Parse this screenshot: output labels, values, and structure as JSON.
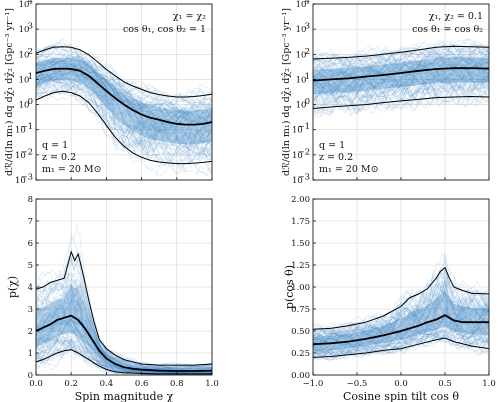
{
  "chart_data": [
    {
      "id": "top-left",
      "type": "line",
      "yscale": "log",
      "xlim": [
        0,
        1
      ],
      "ylim": [
        0.001,
        10000
      ],
      "xticks": [
        0.0,
        0.2,
        0.4,
        0.6,
        0.8,
        1.0
      ],
      "xticklabels": [
        "",
        "",
        "",
        "",
        "",
        ""
      ],
      "yticks": [
        0.001,
        0.01,
        0.1,
        1,
        10,
        100,
        1000,
        10000
      ],
      "yticklabels": [
        "10",
        "10",
        "10",
        "10",
        "10",
        "10",
        "10",
        "10"
      ],
      "ytickexps": [
        "−3",
        "−2",
        "−1",
        "0",
        "1",
        "2",
        "3",
        "4"
      ],
      "xlabel": "",
      "ylabel": "dℛ/d(ln m₁) dq dχ̂₁ dχ̂₂ [Gpc⁻³ yr⁻¹]",
      "grid": true,
      "annotations_topright": [
        "χ₁ = χ₂",
        "cos θ₁, cos θ₂ = 1"
      ],
      "annotations_bottomleft": [
        "q = 1",
        "z = 0.2",
        "m₁ = 20 M⊙"
      ],
      "band_color": "#2f7fbf",
      "series": [
        {
          "role": "median",
          "x": [
            0,
            0.05,
            0.1,
            0.15,
            0.2,
            0.25,
            0.3,
            0.35,
            0.4,
            0.45,
            0.5,
            0.55,
            0.6,
            0.65,
            0.7,
            0.75,
            0.8,
            0.85,
            0.9,
            0.95,
            1.0
          ],
          "values": [
            18,
            22,
            26,
            27,
            26,
            22,
            14,
            7,
            3.5,
            1.8,
            1.0,
            0.6,
            0.4,
            0.3,
            0.25,
            0.2,
            0.17,
            0.16,
            0.16,
            0.17,
            0.2
          ]
        },
        {
          "role": "upper",
          "x": [
            0,
            0.05,
            0.1,
            0.15,
            0.2,
            0.25,
            0.3,
            0.35,
            0.4,
            0.45,
            0.5,
            0.55,
            0.6,
            0.65,
            0.7,
            0.75,
            0.8,
            0.85,
            0.9,
            0.95,
            1.0
          ],
          "values": [
            110,
            150,
            190,
            200,
            190,
            150,
            95,
            50,
            25,
            14,
            8,
            5.5,
            4,
            3,
            2.5,
            2.2,
            2.0,
            2.0,
            2.1,
            2.3,
            2.6
          ]
        },
        {
          "role": "lower",
          "x": [
            0,
            0.05,
            0.1,
            0.15,
            0.2,
            0.25,
            0.3,
            0.35,
            0.4,
            0.45,
            0.5,
            0.55,
            0.6,
            0.65,
            0.7,
            0.75,
            0.8,
            0.85,
            0.9,
            0.95,
            1.0
          ],
          "values": [
            1.5,
            2.2,
            3.0,
            3.4,
            3.0,
            2.2,
            1.2,
            0.45,
            0.15,
            0.05,
            0.022,
            0.012,
            0.008,
            0.006,
            0.0052,
            0.0048,
            0.0045,
            0.0045,
            0.0047,
            0.005,
            0.0055
          ]
        }
      ]
    },
    {
      "id": "top-right",
      "type": "line",
      "yscale": "log",
      "xlim": [
        -1,
        1
      ],
      "ylim": [
        0.001,
        10000
      ],
      "xticks": [
        -1.0,
        -0.5,
        0.0,
        0.5,
        1.0
      ],
      "xticklabels": [
        "",
        "",
        "",
        "",
        ""
      ],
      "yticks": [
        0.001,
        0.01,
        0.1,
        1,
        10,
        100,
        1000,
        10000
      ],
      "yticklabels": [
        "10",
        "10",
        "10",
        "10",
        "10",
        "10",
        "10",
        "10"
      ],
      "ytickexps": [
        "−3",
        "−2",
        "−1",
        "0",
        "1",
        "2",
        "3",
        "4"
      ],
      "xlabel": "",
      "ylabel": "dℛ/d(ln m₁) dq dχ̂₁ dχ̂₂ [Gpc⁻³ yr⁻¹]",
      "grid": true,
      "annotations_topright": [
        "χ₁, χ₂ = 0.1",
        "cos θ₁ = cos θ₂"
      ],
      "annotations_bottomleft": [
        "q = 1",
        "z = 0.2",
        "m₁ = 20 M⊙"
      ],
      "band_color": "#2f7fbf",
      "series": [
        {
          "role": "median",
          "x": [
            -1,
            -0.8,
            -0.6,
            -0.4,
            -0.2,
            0,
            0.2,
            0.4,
            0.6,
            0.8,
            1.0
          ],
          "values": [
            9,
            10,
            11,
            13,
            15,
            18,
            22,
            26,
            28,
            28,
            27
          ]
        },
        {
          "role": "upper",
          "x": [
            -1,
            -0.8,
            -0.6,
            -0.4,
            -0.2,
            0,
            0.2,
            0.4,
            0.6,
            0.8,
            1.0
          ],
          "values": [
            65,
            70,
            75,
            85,
            100,
            120,
            150,
            190,
            210,
            200,
            190
          ]
        },
        {
          "role": "lower",
          "x": [
            -1,
            -0.8,
            -0.6,
            -0.4,
            -0.2,
            0,
            0.2,
            0.4,
            0.6,
            0.8,
            1.0
          ],
          "values": [
            0.7,
            0.8,
            0.9,
            1.0,
            1.2,
            1.4,
            1.6,
            1.9,
            2.0,
            2.1,
            2.0
          ]
        }
      ]
    },
    {
      "id": "bottom-left",
      "type": "line",
      "yscale": "linear",
      "xlim": [
        0,
        1
      ],
      "ylim": [
        0,
        8
      ],
      "xticks": [
        0.0,
        0.2,
        0.4,
        0.6,
        0.8,
        1.0
      ],
      "xticklabels": [
        "0.0",
        "0.2",
        "0.4",
        "0.6",
        "0.8",
        "1.0"
      ],
      "yticks": [
        0,
        1,
        2,
        3,
        4,
        5,
        6,
        7,
        8
      ],
      "yticklabels": [
        "0",
        "1",
        "2",
        "3",
        "4",
        "5",
        "6",
        "7",
        "8"
      ],
      "ytickexps": [],
      "xlabel": "Spin magnitude χ",
      "ylabel": "p(χ)",
      "grid": true,
      "annotations_topright": [],
      "annotations_bottomleft": [],
      "band_color": "#2f7fbf",
      "series": [
        {
          "role": "median",
          "x": [
            0,
            0.04,
            0.08,
            0.12,
            0.16,
            0.2,
            0.24,
            0.28,
            0.32,
            0.36,
            0.4,
            0.45,
            0.5,
            0.55,
            0.6,
            0.7,
            0.8,
            0.9,
            1.0
          ],
          "values": [
            2.0,
            2.15,
            2.3,
            2.5,
            2.6,
            2.7,
            2.5,
            2.1,
            1.6,
            1.1,
            0.75,
            0.5,
            0.35,
            0.28,
            0.24,
            0.2,
            0.18,
            0.18,
            0.2
          ]
        },
        {
          "role": "upper",
          "x": [
            0,
            0.04,
            0.08,
            0.12,
            0.16,
            0.2,
            0.22,
            0.24,
            0.27,
            0.3,
            0.33,
            0.36,
            0.4,
            0.45,
            0.5,
            0.55,
            0.6,
            0.7,
            0.8,
            0.9,
            1.0
          ],
          "values": [
            3.9,
            4.0,
            4.2,
            4.3,
            4.4,
            5.6,
            5.2,
            5.5,
            4.5,
            3.4,
            2.4,
            1.6,
            1.2,
            0.9,
            0.7,
            0.6,
            0.5,
            0.45,
            0.45,
            0.45,
            0.5
          ]
        },
        {
          "role": "lower",
          "x": [
            0,
            0.04,
            0.08,
            0.12,
            0.16,
            0.2,
            0.24,
            0.28,
            0.32,
            0.36,
            0.4,
            0.45,
            0.5,
            0.6,
            0.7,
            0.8,
            0.9,
            1.0
          ],
          "values": [
            0.6,
            0.7,
            0.85,
            1.0,
            1.1,
            1.15,
            1.0,
            0.8,
            0.6,
            0.4,
            0.25,
            0.15,
            0.1,
            0.07,
            0.05,
            0.05,
            0.05,
            0.05
          ]
        }
      ]
    },
    {
      "id": "bottom-right",
      "type": "line",
      "yscale": "linear",
      "xlim": [
        -1,
        1
      ],
      "ylim": [
        0,
        2
      ],
      "xticks": [
        -1.0,
        -0.5,
        0.0,
        0.5,
        1.0
      ],
      "xticklabels": [
        "−1.0",
        "−0.5",
        "0.0",
        "0.5",
        "1.0"
      ],
      "yticks": [
        0,
        0.25,
        0.5,
        0.75,
        1.0,
        1.25,
        1.5,
        1.75,
        2.0
      ],
      "yticklabels": [
        "0.00",
        "0.25",
        "0.50",
        "0.75",
        "1.00",
        "1.25",
        "1.50",
        "1.75",
        "2.00"
      ],
      "ytickexps": [],
      "xlabel": "Cosine spin tilt cos θ",
      "ylabel": "p(cos θ)",
      "grid": true,
      "annotations_topright": [],
      "annotations_bottomleft": [],
      "band_color": "#2f7fbf",
      "series": [
        {
          "role": "median",
          "x": [
            -1,
            -0.8,
            -0.6,
            -0.4,
            -0.2,
            0,
            0.2,
            0.3,
            0.4,
            0.5,
            0.6,
            0.7,
            0.8,
            1.0
          ],
          "values": [
            0.35,
            0.36,
            0.38,
            0.41,
            0.45,
            0.5,
            0.56,
            0.6,
            0.63,
            0.68,
            0.62,
            0.6,
            0.6,
            0.6
          ]
        },
        {
          "role": "upper",
          "x": [
            -1,
            -0.8,
            -0.6,
            -0.4,
            -0.2,
            0,
            0.1,
            0.2,
            0.3,
            0.4,
            0.45,
            0.5,
            0.55,
            0.6,
            0.7,
            0.8,
            1.0
          ],
          "values": [
            0.52,
            0.53,
            0.56,
            0.6,
            0.67,
            0.78,
            0.88,
            0.92,
            0.98,
            1.1,
            1.18,
            1.22,
            1.1,
            1.0,
            0.96,
            0.93,
            0.92
          ]
        },
        {
          "role": "lower",
          "x": [
            -1,
            -0.8,
            -0.6,
            -0.4,
            -0.2,
            0,
            0.2,
            0.4,
            0.5,
            0.6,
            0.8,
            1.0
          ],
          "values": [
            0.2,
            0.21,
            0.23,
            0.25,
            0.28,
            0.3,
            0.35,
            0.4,
            0.42,
            0.38,
            0.33,
            0.3
          ]
        }
      ]
    }
  ]
}
